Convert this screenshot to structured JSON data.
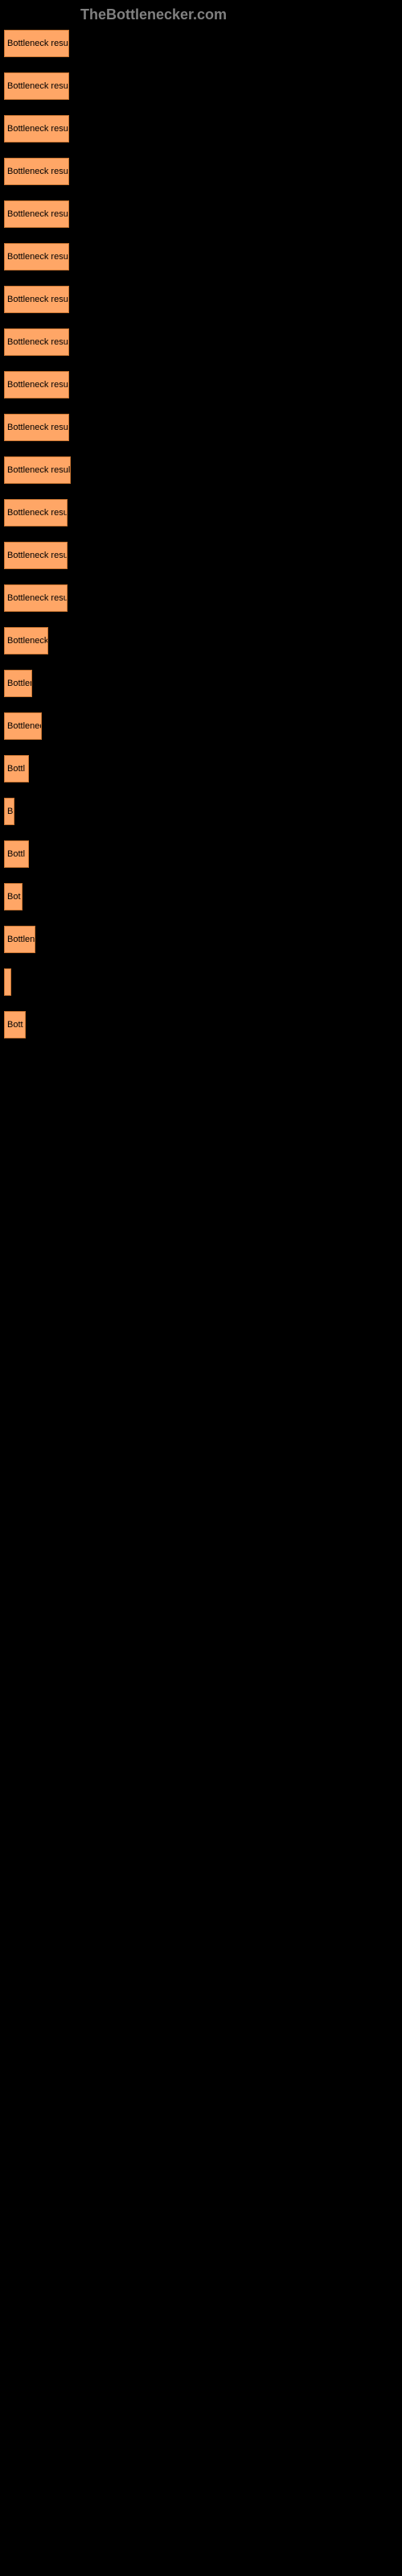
{
  "logo_text": "TheBottlenecker.com",
  "chart": {
    "type": "bar",
    "bar_label": "Bottleneck result",
    "bar_color": "#ffa666",
    "bar_border_color": "#cc7733",
    "background_color": "#000000",
    "text_color": "#000000",
    "font_size": 11,
    "bars": [
      {
        "width": 76,
        "label": "Bottleneck result"
      },
      {
        "width": 76,
        "label": "Bottleneck result"
      },
      {
        "width": 76,
        "label": "Bottleneck result"
      },
      {
        "width": 76,
        "label": "Bottleneck result"
      },
      {
        "width": 76,
        "label": "Bottleneck result"
      },
      {
        "width": 76,
        "label": "Bottleneck result"
      },
      {
        "width": 76,
        "label": "Bottleneck result"
      },
      {
        "width": 76,
        "label": "Bottleneck result"
      },
      {
        "width": 76,
        "label": "Bottleneck result"
      },
      {
        "width": 76,
        "label": "Bottleneck result"
      },
      {
        "width": 78,
        "label": "Bottleneck result"
      },
      {
        "width": 74,
        "label": "Bottleneck resu"
      },
      {
        "width": 74,
        "label": "Bottleneck resul"
      },
      {
        "width": 74,
        "label": "Bottleneck resu"
      },
      {
        "width": 50,
        "label": "Bottleneck"
      },
      {
        "width": 30,
        "label": "Bottler"
      },
      {
        "width": 42,
        "label": "Bottlenec"
      },
      {
        "width": 26,
        "label": "Bottl"
      },
      {
        "width": 8,
        "label": "B"
      },
      {
        "width": 26,
        "label": "Bottl"
      },
      {
        "width": 18,
        "label": "Bot"
      },
      {
        "width": 34,
        "label": "Bottlene"
      },
      {
        "width": 4,
        "label": ""
      },
      {
        "width": 22,
        "label": "Bott"
      }
    ]
  }
}
